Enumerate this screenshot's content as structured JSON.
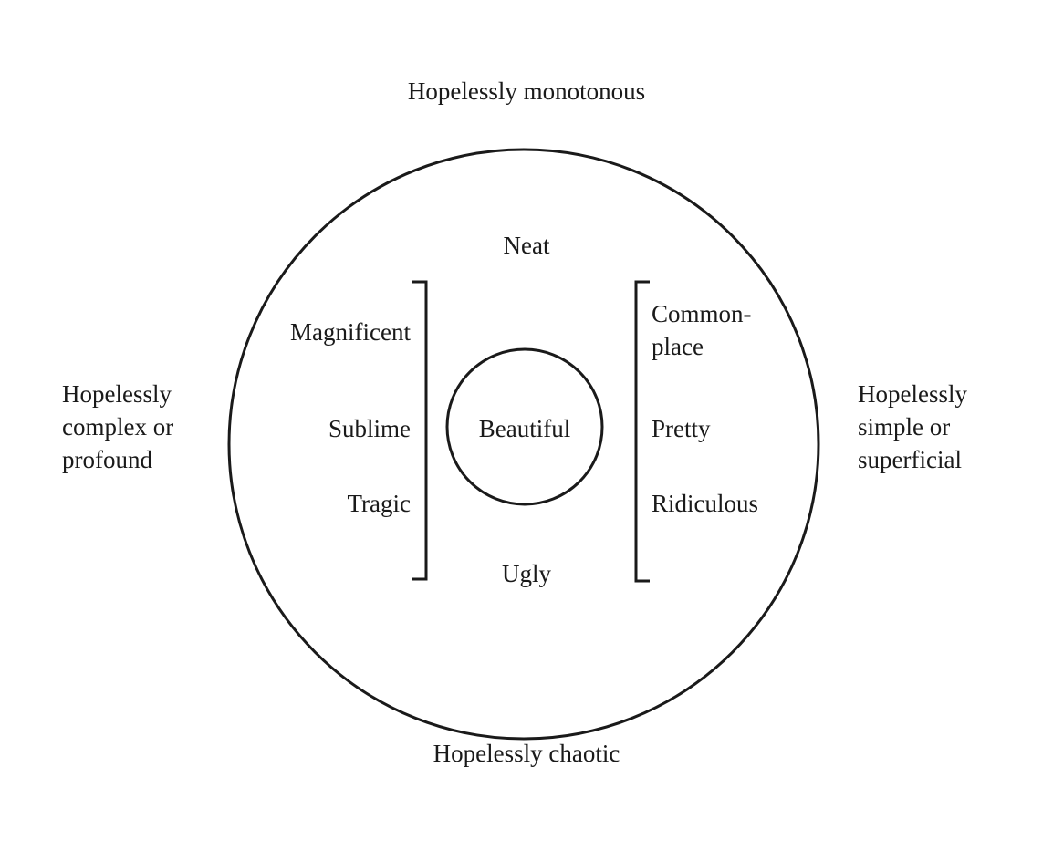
{
  "outer_labels": {
    "top": "Hopelessly monotonous",
    "bottom": "Hopelessly chaotic",
    "left": [
      "Hopelessly",
      "complex or",
      "profound"
    ],
    "right": [
      "Hopelessly",
      "simple or",
      "superficial"
    ]
  },
  "inner_labels": {
    "top": "Neat",
    "bottom": "Ugly",
    "center": "Beautiful"
  },
  "left_group": [
    "Magnificent",
    "Sublime",
    "Tragic"
  ],
  "right_group": {
    "commonplace": [
      "Common-",
      "place"
    ],
    "pretty": "Pretty",
    "ridiculous": "Ridiculous"
  },
  "colors": {
    "ink": "#1a1a1a",
    "background": "#ffffff"
  }
}
